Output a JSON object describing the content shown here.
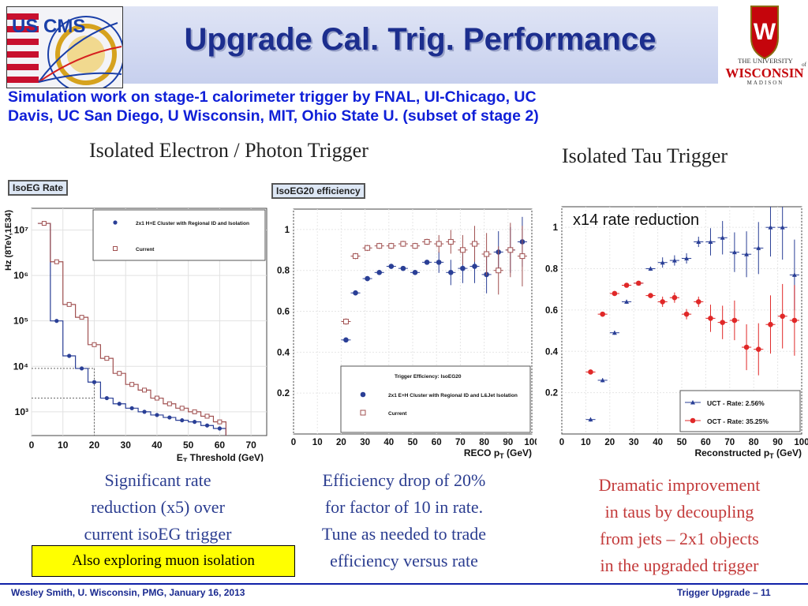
{
  "header": {
    "title": "Upgrade Cal. Trig. Performance",
    "subtitle_line1": "Simulation work on stage-1 calorimeter trigger by FNAL, UI-Chicago, UC",
    "subtitle_line2": "Davis, UC San Diego, U Wisconsin, MIT, Ohio State U. (subset of stage 2)",
    "logo_left_text": "US CMS",
    "logo_right_line1": "THE UNIVERSITY",
    "logo_right_line2": "WISCONSIN",
    "logo_right_line3": "MADISON",
    "logo_right_of": "of"
  },
  "sections": {
    "left_title": "Isolated Electron / Photon Trigger",
    "right_title": "Isolated Tau Trigger"
  },
  "captions": {
    "c1": [
      "Significant rate",
      "reduction (x5) over",
      "current isoEG trigger"
    ],
    "c2": [
      "Efficiency drop of 20%",
      "for factor of 10 in rate.",
      "Tune as needed to trade",
      "efficiency versus rate"
    ],
    "c3": [
      "Dramatic improvement",
      "in taus by decoupling",
      "from jets – 2x1 objects",
      "in the upgraded trigger"
    ],
    "muon": "Also exploring muon isolation"
  },
  "footer": {
    "left": "Wesley Smith, U. Wisconsin, PMG, January 16, 2013",
    "right": "Trigger Upgrade  – 11"
  },
  "colors": {
    "blue": "#2a3f96",
    "red_open": "#a05050",
    "tau_red": "#e02828"
  },
  "chart_data": [
    {
      "type": "line",
      "title": "IsoEG Rate",
      "xlabel": "E_T Threshold (GeV)",
      "ylabel": "Hz (8TeV,1E34)",
      "log_y": true,
      "xlim": [
        0,
        75
      ],
      "ylim": [
        300,
        30000000
      ],
      "x_ticks": [
        0,
        10,
        20,
        30,
        40,
        50,
        60,
        70
      ],
      "y_ticks": [
        {
          "value": 1000,
          "label": "10³"
        },
        {
          "value": 10000,
          "label": "10⁴"
        },
        {
          "value": 100000,
          "label": "10⁵"
        },
        {
          "value": 1000000,
          "label": "10⁶"
        },
        {
          "value": 10000000,
          "label": "10⁷"
        }
      ],
      "legend": [
        "2x1 H+E Cluster with Regional ID and Isolation",
        "Current"
      ],
      "series": [
        {
          "name": "2x1 H+E Cluster with Regional ID and Isolation",
          "x": [
            4,
            8,
            12,
            16,
            20,
            24,
            28,
            32,
            36,
            40,
            44,
            48,
            52,
            56,
            60
          ],
          "y": [
            14000000,
            100000,
            17000,
            9000,
            4500,
            2000,
            1500,
            1200,
            1000,
            850,
            750,
            650,
            600,
            500,
            430
          ]
        },
        {
          "name": "Current",
          "x": [
            4,
            8,
            12,
            16,
            20,
            24,
            28,
            32,
            36,
            40,
            44,
            48,
            52,
            56,
            60
          ],
          "y": [
            14000000,
            2000000,
            230000,
            120000,
            30000,
            15000,
            7000,
            4000,
            3000,
            2000,
            1500,
            1200,
            1000,
            800,
            600
          ]
        }
      ],
      "reference_lines": [
        {
          "y": 9000,
          "x": 20
        },
        {
          "y": 2000,
          "x": 20
        }
      ]
    },
    {
      "type": "scatter",
      "title": "IsoEG20 efficiency",
      "xlabel": "RECO p_T (GeV)",
      "xlim": [
        0,
        100
      ],
      "ylim": [
        0,
        1.1
      ],
      "x_ticks": [
        0,
        10,
        20,
        30,
        40,
        50,
        60,
        70,
        80,
        90,
        100
      ],
      "y_ticks": [
        0.2,
        0.4,
        0.6,
        0.8,
        1
      ],
      "legend_title": "Trigger Efficiency: IsoEG20",
      "legend": [
        "2x1 E+H Cluster with Regional ID and L&Jet Isolation",
        "Current"
      ],
      "series": [
        {
          "name": "2x1 E+H Cluster with Regional ID and L&Jet Isolation",
          "x": [
            22,
            26,
            31,
            36,
            41,
            46,
            51,
            56,
            61,
            66,
            71,
            76,
            81,
            86,
            91,
            96
          ],
          "y": [
            0.46,
            0.69,
            0.76,
            0.79,
            0.82,
            0.81,
            0.79,
            0.84,
            0.84,
            0.79,
            0.81,
            0.82,
            0.78,
            0.89,
            0.9,
            0.94
          ]
        },
        {
          "name": "Current",
          "x": [
            22,
            26,
            31,
            36,
            41,
            46,
            51,
            56,
            61,
            66,
            71,
            76,
            81,
            86,
            91,
            96
          ],
          "y": [
            0.55,
            0.87,
            0.91,
            0.92,
            0.92,
            0.93,
            0.92,
            0.94,
            0.93,
            0.94,
            0.9,
            0.93,
            0.88,
            0.8,
            0.9,
            0.87
          ]
        }
      ]
    },
    {
      "type": "scatter",
      "title": "x14 rate reduction",
      "xlabel": "Reconstructed p_T (GeV)",
      "xlim": [
        0,
        100
      ],
      "ylim": [
        0,
        1.1
      ],
      "x_ticks": [
        0,
        10,
        20,
        30,
        40,
        50,
        60,
        70,
        80,
        90,
        100
      ],
      "y_ticks": [
        0.2,
        0.4,
        0.6,
        0.8,
        1
      ],
      "legend": [
        "UCT - Rate: 2.56%",
        "OCT - Rate: 35.25%"
      ],
      "series": [
        {
          "name": "UCT - Rate: 2.56%",
          "x": [
            12,
            17,
            22,
            27,
            32,
            37,
            42,
            47,
            52,
            57,
            62,
            67,
            72,
            77,
            82,
            87,
            92,
            97
          ],
          "y": [
            0.07,
            0.26,
            0.49,
            0.64,
            0.73,
            0.8,
            0.83,
            0.84,
            0.85,
            0.93,
            0.93,
            0.95,
            0.88,
            0.87,
            0.9,
            1.0,
            1.0,
            0.77
          ]
        },
        {
          "name": "OCT - Rate: 35.25%",
          "x": [
            12,
            17,
            22,
            27,
            32,
            37,
            42,
            47,
            52,
            57,
            62,
            67,
            72,
            77,
            82,
            87,
            92,
            97
          ],
          "y": [
            0.3,
            0.58,
            0.68,
            0.72,
            0.73,
            0.67,
            0.64,
            0.66,
            0.58,
            0.64,
            0.56,
            0.54,
            0.55,
            0.42,
            0.41,
            0.53,
            0.57,
            0.55
          ]
        }
      ]
    }
  ]
}
